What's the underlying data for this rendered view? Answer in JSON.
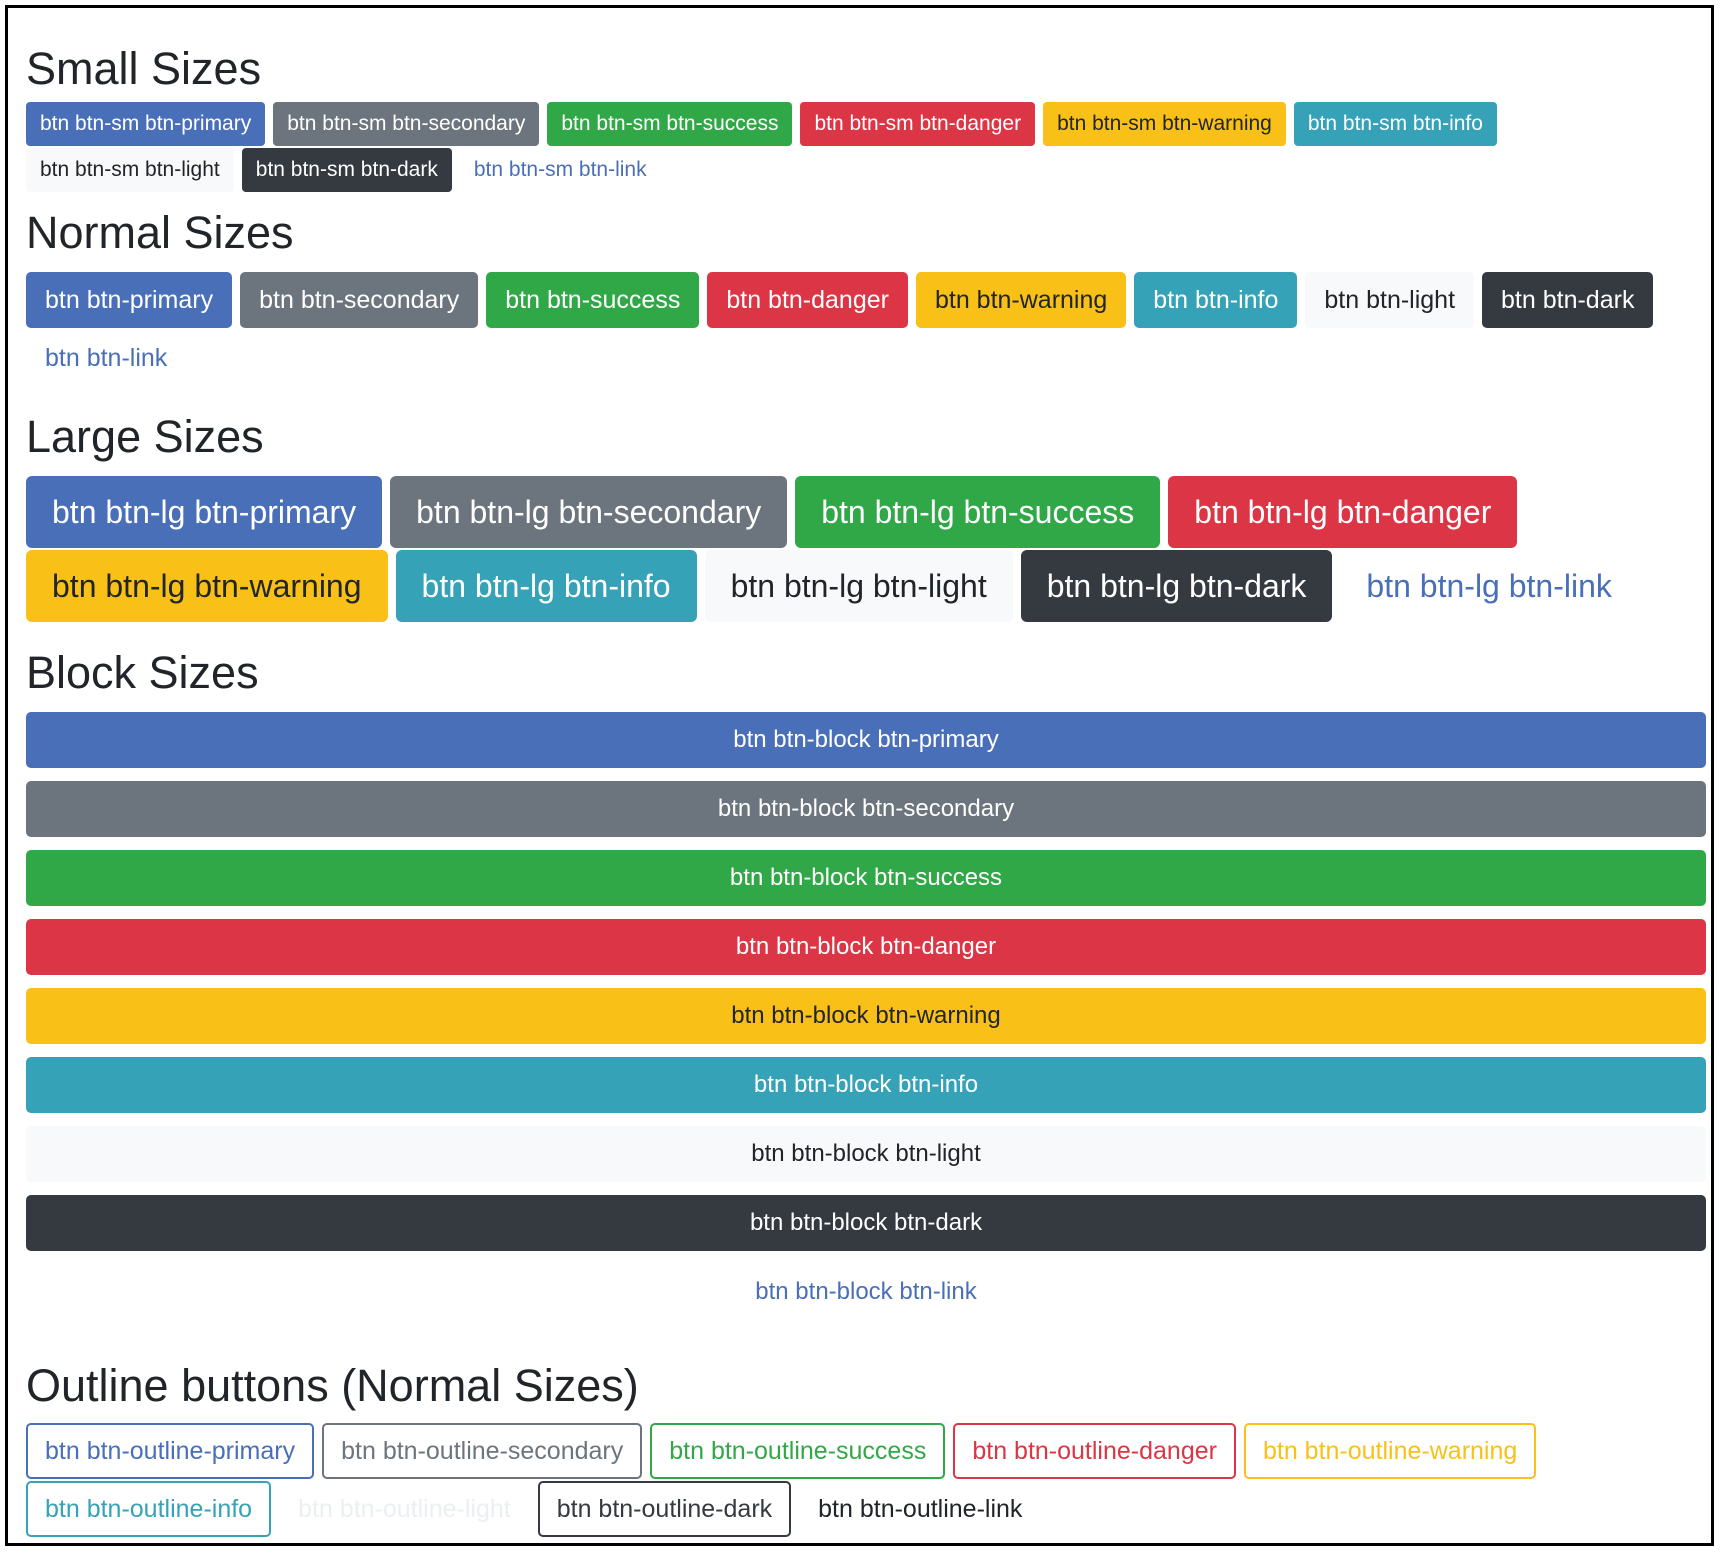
{
  "sections": {
    "small": {
      "title": "Small Sizes",
      "buttons": [
        "btn btn-sm btn-primary",
        "btn btn-sm btn-secondary",
        "btn btn-sm btn-success",
        "btn btn-sm btn-danger",
        "btn btn-sm btn-warning",
        "btn btn-sm btn-info",
        "btn btn-sm btn-light",
        "btn btn-sm btn-dark",
        "btn btn-sm btn-link"
      ]
    },
    "normal": {
      "title": "Normal Sizes",
      "buttons": [
        "btn btn-primary",
        "btn btn-secondary",
        "btn btn-success",
        "btn btn-danger",
        "btn btn-warning",
        "btn btn-info",
        "btn btn-light",
        "btn btn-dark",
        "btn btn-link"
      ]
    },
    "large": {
      "title": "Large Sizes",
      "buttons": [
        "btn btn-lg btn-primary",
        "btn btn-lg btn-secondary",
        "btn btn-lg btn-success",
        "btn btn-lg btn-danger",
        "btn btn-lg btn-warning",
        "btn btn-lg btn-info",
        "btn btn-lg btn-light",
        "btn btn-lg btn-dark",
        "btn btn-lg btn-link"
      ]
    },
    "block": {
      "title": "Block Sizes",
      "buttons": [
        "btn btn-block btn-primary",
        "btn btn-block btn-secondary",
        "btn btn-block btn-success",
        "btn btn-block btn-danger",
        "btn btn-block btn-warning",
        "btn btn-block btn-info",
        "btn btn-block btn-light",
        "btn btn-block btn-dark",
        "btn btn-block btn-link"
      ]
    },
    "outline": {
      "title": "Outline buttons (Normal Sizes)",
      "buttons": [
        "btn btn-outline-primary",
        "btn btn-outline-secondary",
        "btn btn-outline-success",
        "btn btn-outline-danger",
        "btn btn-outline-warning",
        "btn btn-outline-info",
        "btn btn-outline-light",
        "btn btn-outline-dark",
        "btn btn-outline-link"
      ]
    }
  },
  "colors": {
    "primary": "#4a6fb9",
    "secondary": "#6c757d",
    "success": "#31a847",
    "danger": "#dc3545",
    "warning": "#f9c117",
    "info": "#36a2b8",
    "light": "#f8f9fa",
    "dark": "#343a40"
  }
}
